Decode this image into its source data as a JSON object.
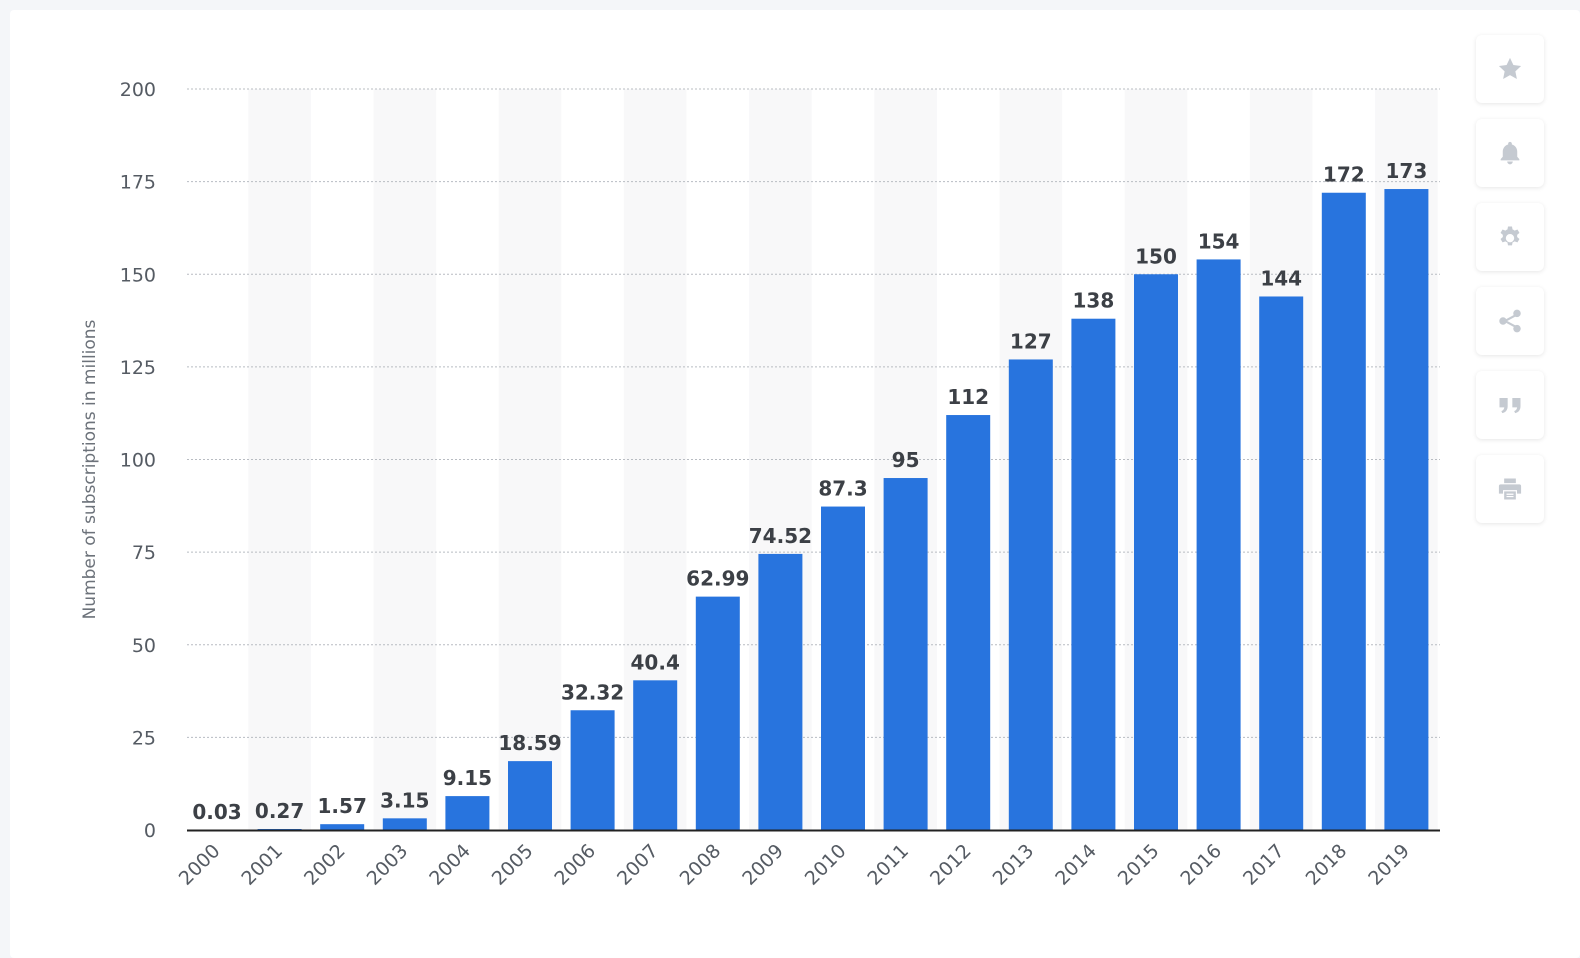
{
  "toolbar": {
    "buttons": [
      {
        "icon": "star-icon",
        "name": "favorite-button"
      },
      {
        "icon": "bell-icon",
        "name": "notification-button"
      },
      {
        "icon": "gear-icon",
        "name": "settings-button"
      },
      {
        "icon": "share-icon",
        "name": "share-button"
      },
      {
        "icon": "quote-icon",
        "name": "cite-button"
      },
      {
        "icon": "print-icon",
        "name": "print-button"
      }
    ]
  },
  "chart_data": {
    "type": "bar",
    "title": "",
    "xlabel": "",
    "ylabel": "Number of subscriptions in millions",
    "categories": [
      "2000",
      "2001",
      "2002",
      "2003",
      "2004",
      "2005",
      "2006",
      "2007",
      "2008",
      "2009",
      "2010",
      "2011",
      "2012",
      "2013",
      "2014",
      "2015",
      "2016",
      "2017",
      "2018",
      "2019"
    ],
    "values": [
      0.03,
      0.27,
      1.57,
      3.15,
      9.15,
      18.59,
      32.32,
      40.4,
      62.99,
      74.52,
      87.3,
      95,
      112,
      127,
      138,
      150,
      154,
      144,
      172,
      173
    ],
    "value_labels": [
      "0.03",
      "0.27",
      "1.57",
      "3.15",
      "9.15",
      "18.59",
      "32.32",
      "40.4",
      "62.99",
      "74.52",
      "87.3",
      "95",
      "112",
      "127",
      "138",
      "150",
      "154",
      "144",
      "172",
      "173"
    ],
    "ylim": [
      0,
      200
    ],
    "yticks": [
      0,
      25,
      50,
      75,
      100,
      125,
      150,
      175,
      200
    ],
    "ytick_labels": [
      "0",
      "25",
      "50",
      "75",
      "100",
      "125",
      "150",
      "175",
      "200"
    ],
    "grid": true,
    "legend": "none",
    "colors": {
      "bar": "#2874de",
      "band": "#f8f8f9",
      "grid": "#b8bcc2",
      "axis": "#222222"
    }
  }
}
